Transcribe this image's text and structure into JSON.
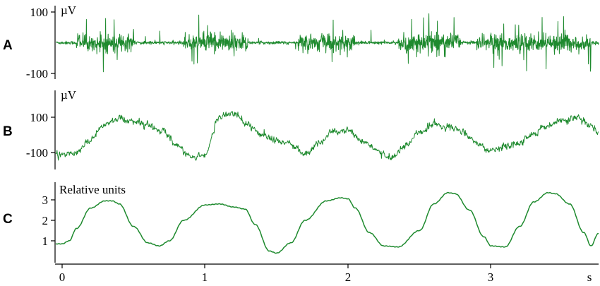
{
  "chart_data": [
    {
      "panel": "A",
      "type": "line",
      "ylabel": "µV",
      "yticks": [
        100,
        -100
      ],
      "yticklabels": [
        "100",
        "-100"
      ],
      "ylim": [
        -110,
        110
      ],
      "xlim": [
        0,
        3.75
      ],
      "series": [
        {
          "color": "#1e8a2e",
          "description_free": true,
          "x": [
            0,
            3.75
          ],
          "burst_windows_s": [
            [
              0.1,
              0.5
            ],
            [
              0.85,
              1.3
            ],
            [
              1.65,
              2.05
            ],
            [
              2.35,
              2.8
            ],
            [
              2.9,
              3.7
            ]
          ],
          "baseline_amplitude": 8,
          "burst_amplitude": 95
        }
      ]
    },
    {
      "panel": "B",
      "type": "line",
      "ylabel": "µV",
      "yticks": [
        100,
        -100
      ],
      "yticklabels": [
        "100",
        "-100"
      ],
      "ylim": [
        -160,
        170
      ],
      "xlim": [
        0,
        3.75
      ],
      "series": [
        {
          "color": "#1e8a2e",
          "x": [
            0.0,
            0.1,
            0.2,
            0.3,
            0.4,
            0.5,
            0.6,
            0.7,
            0.8,
            0.9,
            1.0,
            1.1,
            1.2,
            1.3,
            1.4,
            1.5,
            1.6,
            1.7,
            1.8,
            1.9,
            2.0,
            2.1,
            2.2,
            2.3,
            2.4,
            2.5,
            2.6,
            2.7,
            2.8,
            2.9,
            3.0,
            3.1,
            3.2,
            3.3,
            3.4,
            3.5,
            3.6,
            3.7,
            3.75
          ],
          "y": [
            -115,
            -100,
            -20,
            60,
            95,
            75,
            60,
            20,
            -60,
            -130,
            -110,
            100,
            130,
            55,
            0,
            -30,
            -50,
            -110,
            -40,
            20,
            30,
            -40,
            -85,
            -130,
            -60,
            20,
            60,
            45,
            20,
            -50,
            -90,
            -70,
            -40,
            0,
            50,
            80,
            100,
            50,
            10
          ]
        }
      ]
    },
    {
      "panel": "C",
      "type": "line",
      "ylabel": "Relative units",
      "yticks": [
        3,
        2,
        1
      ],
      "yticklabels": [
        "3",
        "2",
        "1"
      ],
      "ylim": [
        0.3,
        3.5
      ],
      "xlim": [
        0,
        3.75
      ],
      "xticks": [
        0,
        1,
        2,
        3
      ],
      "xticklabels": [
        "0",
        "1",
        "2",
        "3"
      ],
      "xunit": "s",
      "series": [
        {
          "color": "#1e8a2e",
          "x": [
            0.0,
            0.05,
            0.1,
            0.2,
            0.3,
            0.35,
            0.4,
            0.5,
            0.6,
            0.68,
            0.75,
            0.85,
            1.0,
            1.1,
            1.2,
            1.28,
            1.35,
            1.45,
            1.5,
            1.6,
            1.7,
            1.85,
            1.95,
            2.0,
            2.05,
            2.15,
            2.25,
            2.35,
            2.5,
            2.6,
            2.7,
            2.75,
            2.85,
            2.95,
            3.0,
            3.1,
            3.2,
            3.3,
            3.4,
            3.45,
            3.55,
            3.65,
            3.7,
            3.75
          ],
          "y": [
            0.85,
            1.0,
            1.6,
            2.6,
            2.95,
            2.95,
            2.8,
            1.7,
            0.9,
            0.75,
            1.0,
            2.0,
            2.75,
            2.8,
            2.65,
            2.55,
            1.8,
            0.5,
            0.4,
            0.9,
            2.0,
            2.95,
            3.1,
            3.05,
            2.6,
            1.4,
            0.75,
            0.7,
            1.5,
            2.8,
            3.35,
            3.3,
            2.5,
            1.2,
            0.75,
            0.7,
            1.7,
            2.9,
            3.35,
            3.3,
            2.8,
            1.4,
            0.75,
            1.35
          ]
        }
      ]
    }
  ],
  "panels": {
    "A": {
      "letter": "A",
      "unit": "µV",
      "ticks": [
        "100",
        "-100"
      ]
    },
    "B": {
      "letter": "B",
      "unit": "µV",
      "ticks": [
        "100",
        "-100"
      ]
    },
    "C": {
      "letter": "C",
      "unit": "Relative units",
      "ticks": [
        "3",
        "2",
        "1"
      ]
    }
  },
  "xaxis": {
    "ticks": [
      "0",
      "1",
      "2",
      "3"
    ],
    "unit": "s"
  },
  "colors": {
    "trace": "#1e8a2e",
    "axis": "#000000"
  }
}
